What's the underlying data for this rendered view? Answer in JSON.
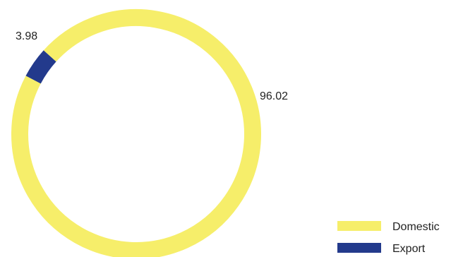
{
  "chart_data": {
    "type": "pie",
    "style": "donut",
    "title": "",
    "slices": [
      {
        "name": "Domestic",
        "value": 96.02,
        "color": "#F6EE6A"
      },
      {
        "name": "Export",
        "value": 3.98,
        "color": "#233A8C"
      }
    ],
    "data_labels": [
      "96.02",
      "3.98"
    ],
    "legend": {
      "position": "bottom-right",
      "entries": [
        "Domestic",
        "Export"
      ]
    }
  }
}
